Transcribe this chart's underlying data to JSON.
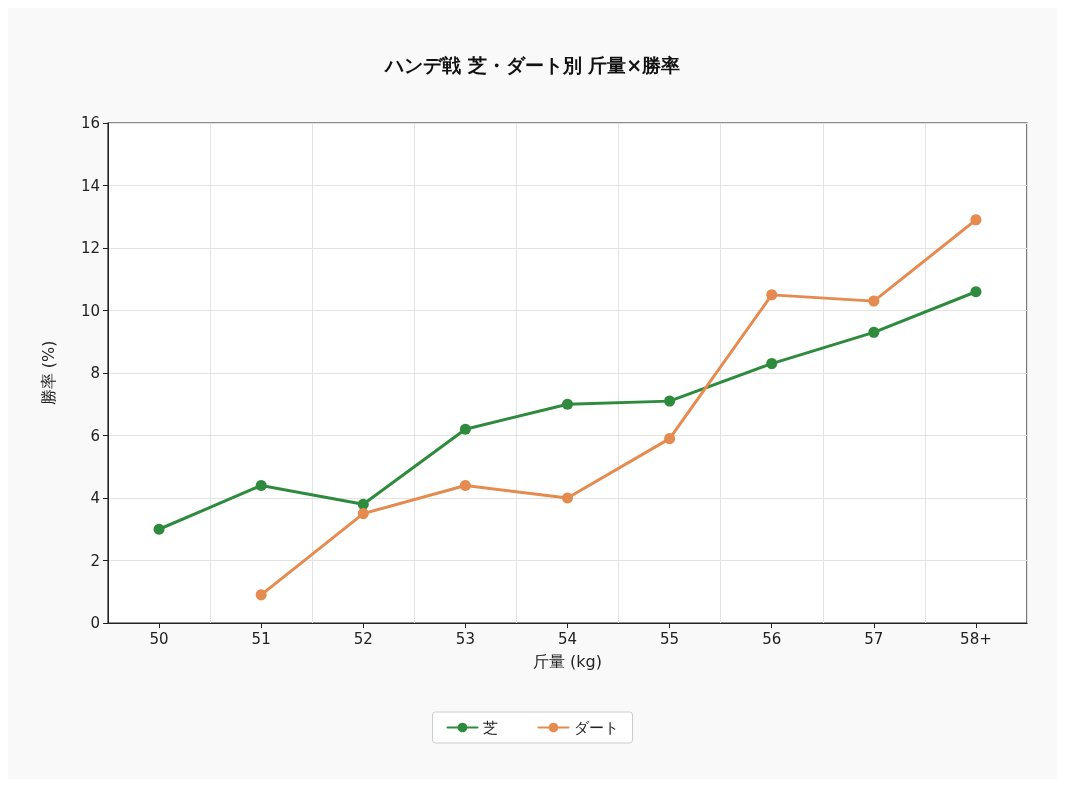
{
  "chart_data": {
    "type": "line",
    "title": "ハンデ戦 芝・ダート別 斤量×勝率",
    "xlabel": "斤量 (kg)",
    "ylabel": "勝率 (%)",
    "categories": [
      "50",
      "51",
      "52",
      "53",
      "54",
      "55",
      "56",
      "57",
      "58+"
    ],
    "series": [
      {
        "name": "芝",
        "color": "#2e8b3e",
        "values": [
          3.0,
          4.4,
          3.8,
          6.2,
          7.0,
          7.1,
          8.3,
          9.3,
          10.6
        ]
      },
      {
        "name": "ダート",
        "color": "#e58b4f",
        "values": [
          null,
          0.9,
          3.5,
          4.4,
          4.0,
          5.9,
          10.5,
          10.3,
          12.9
        ]
      }
    ],
    "ylim": [
      0,
      16
    ],
    "yticks": [
      0,
      2,
      4,
      6,
      8,
      10,
      12,
      14,
      16
    ],
    "grid": true,
    "legend": "bottom",
    "marker": "circle",
    "line_style": "solid"
  }
}
